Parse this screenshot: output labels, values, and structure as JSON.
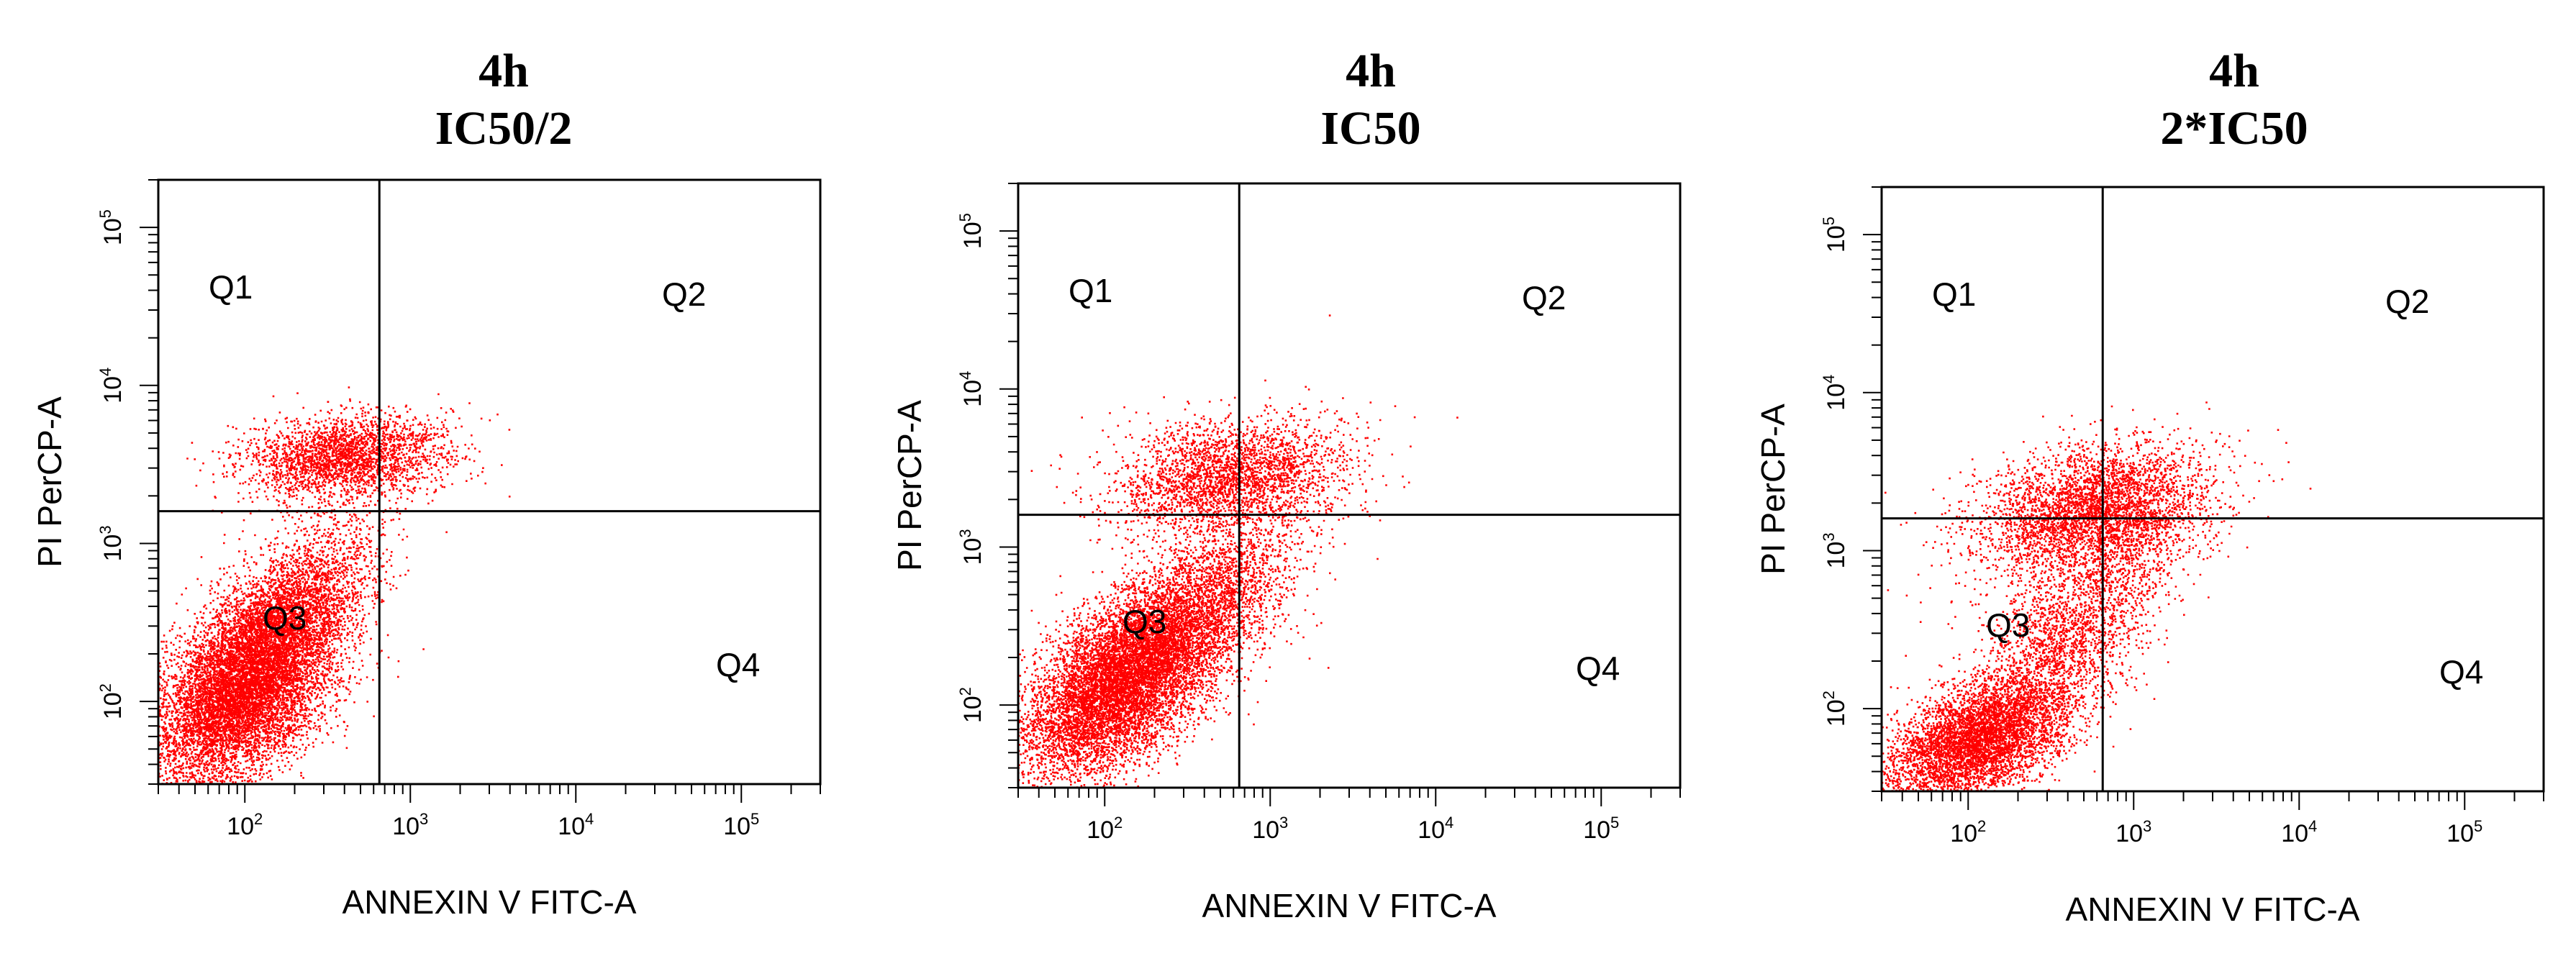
{
  "chart_data": [
    {
      "type": "scatter",
      "title_line1": "4h",
      "title_line2": "IC50/2",
      "xlabel": "ANNEXIN V FITC-A",
      "ylabel": "PI PerCP-A",
      "x_scale": "log",
      "y_scale": "log",
      "xlim": [
        30,
        300000
      ],
      "ylim": [
        30,
        200000
      ],
      "x_ticks": [
        {
          "base": "10",
          "exp": "2",
          "value": 100
        },
        {
          "base": "10",
          "exp": "3",
          "value": 1000
        },
        {
          "base": "10",
          "exp": "4",
          "value": 10000
        },
        {
          "base": "10",
          "exp": "5",
          "value": 100000
        }
      ],
      "y_ticks": [
        {
          "base": "10",
          "exp": "2",
          "value": 100
        },
        {
          "base": "10",
          "exp": "3",
          "value": 1000
        },
        {
          "base": "10",
          "exp": "4",
          "value": 10000
        },
        {
          "base": "10",
          "exp": "5",
          "value": 100000
        }
      ],
      "gate": {
        "x": 650,
        "y": 1600
      },
      "quadrants": {
        "q1": "Q1",
        "q2": "Q2",
        "q3": "Q3",
        "q4": "Q4"
      },
      "point_color": "#ff0000",
      "clusters": [
        {
          "cx": 2.0,
          "cy": 2.1,
          "sx": 0.28,
          "sy": 0.32,
          "rho": 0.5,
          "n": 9000
        },
        {
          "cx": 2.3,
          "cy": 2.6,
          "sx": 0.25,
          "sy": 0.28,
          "rho": 0.6,
          "n": 2200
        },
        {
          "cx": 2.6,
          "cy": 3.55,
          "sx": 0.3,
          "sy": 0.13,
          "rho": 0.2,
          "n": 2600
        }
      ]
    },
    {
      "type": "scatter",
      "title_line1": "4h",
      "title_line2": "IC50",
      "xlabel": "ANNEXIN V FITC-A",
      "ylabel": "PI PerCP-A",
      "x_scale": "log",
      "y_scale": "log",
      "xlim": [
        30,
        300000
      ],
      "ylim": [
        30,
        200000
      ],
      "x_ticks": [
        {
          "base": "10",
          "exp": "2",
          "value": 100
        },
        {
          "base": "10",
          "exp": "3",
          "value": 1000
        },
        {
          "base": "10",
          "exp": "4",
          "value": 10000
        },
        {
          "base": "10",
          "exp": "5",
          "value": 100000
        }
      ],
      "y_ticks": [
        {
          "base": "10",
          "exp": "2",
          "value": 100
        },
        {
          "base": "10",
          "exp": "3",
          "value": 1000
        },
        {
          "base": "10",
          "exp": "4",
          "value": 10000
        },
        {
          "base": "10",
          "exp": "5",
          "value": 100000
        }
      ],
      "gate": {
        "x": 650,
        "y": 1600
      },
      "quadrants": {
        "q1": "Q1",
        "q2": "Q2",
        "q3": "Q3",
        "q4": "Q4"
      },
      "point_color": "#ff0000",
      "clusters": [
        {
          "cx": 2.1,
          "cy": 2.15,
          "sx": 0.3,
          "sy": 0.3,
          "rho": 0.55,
          "n": 8000
        },
        {
          "cx": 2.55,
          "cy": 2.6,
          "sx": 0.3,
          "sy": 0.3,
          "rho": 0.6,
          "n": 2800
        },
        {
          "cx": 2.75,
          "cy": 3.45,
          "sx": 0.35,
          "sy": 0.18,
          "rho": 0.2,
          "n": 2800
        }
      ]
    },
    {
      "type": "scatter",
      "title_line1": "4h",
      "title_line2": "2*IC50",
      "xlabel": "ANNEXIN V FITC-A",
      "ylabel": "PI PerCP-A",
      "x_scale": "log",
      "y_scale": "log",
      "xlim": [
        30,
        300000
      ],
      "ylim": [
        30,
        200000
      ],
      "x_ticks": [
        {
          "base": "10",
          "exp": "2",
          "value": 100
        },
        {
          "base": "10",
          "exp": "3",
          "value": 1000
        },
        {
          "base": "10",
          "exp": "4",
          "value": 10000
        },
        {
          "base": "10",
          "exp": "5",
          "value": 100000
        }
      ],
      "y_ticks": [
        {
          "base": "10",
          "exp": "2",
          "value": 100
        },
        {
          "base": "10",
          "exp": "3",
          "value": 1000
        },
        {
          "base": "10",
          "exp": "4",
          "value": 10000
        },
        {
          "base": "10",
          "exp": "5",
          "value": 100000
        }
      ],
      "gate": {
        "x": 650,
        "y": 1600
      },
      "quadrants": {
        "q1": "Q1",
        "q2": "Q2",
        "q3": "Q3",
        "q4": "Q4"
      },
      "point_color": "#ff0000",
      "clusters": [
        {
          "cx": 2.05,
          "cy": 1.8,
          "sx": 0.28,
          "sy": 0.2,
          "rho": 0.5,
          "n": 5000
        },
        {
          "cx": 2.6,
          "cy": 2.5,
          "sx": 0.3,
          "sy": 0.35,
          "rho": 0.6,
          "n": 2200
        },
        {
          "cx": 2.75,
          "cy": 3.25,
          "sx": 0.35,
          "sy": 0.2,
          "rho": 0.3,
          "n": 3800
        }
      ]
    }
  ]
}
